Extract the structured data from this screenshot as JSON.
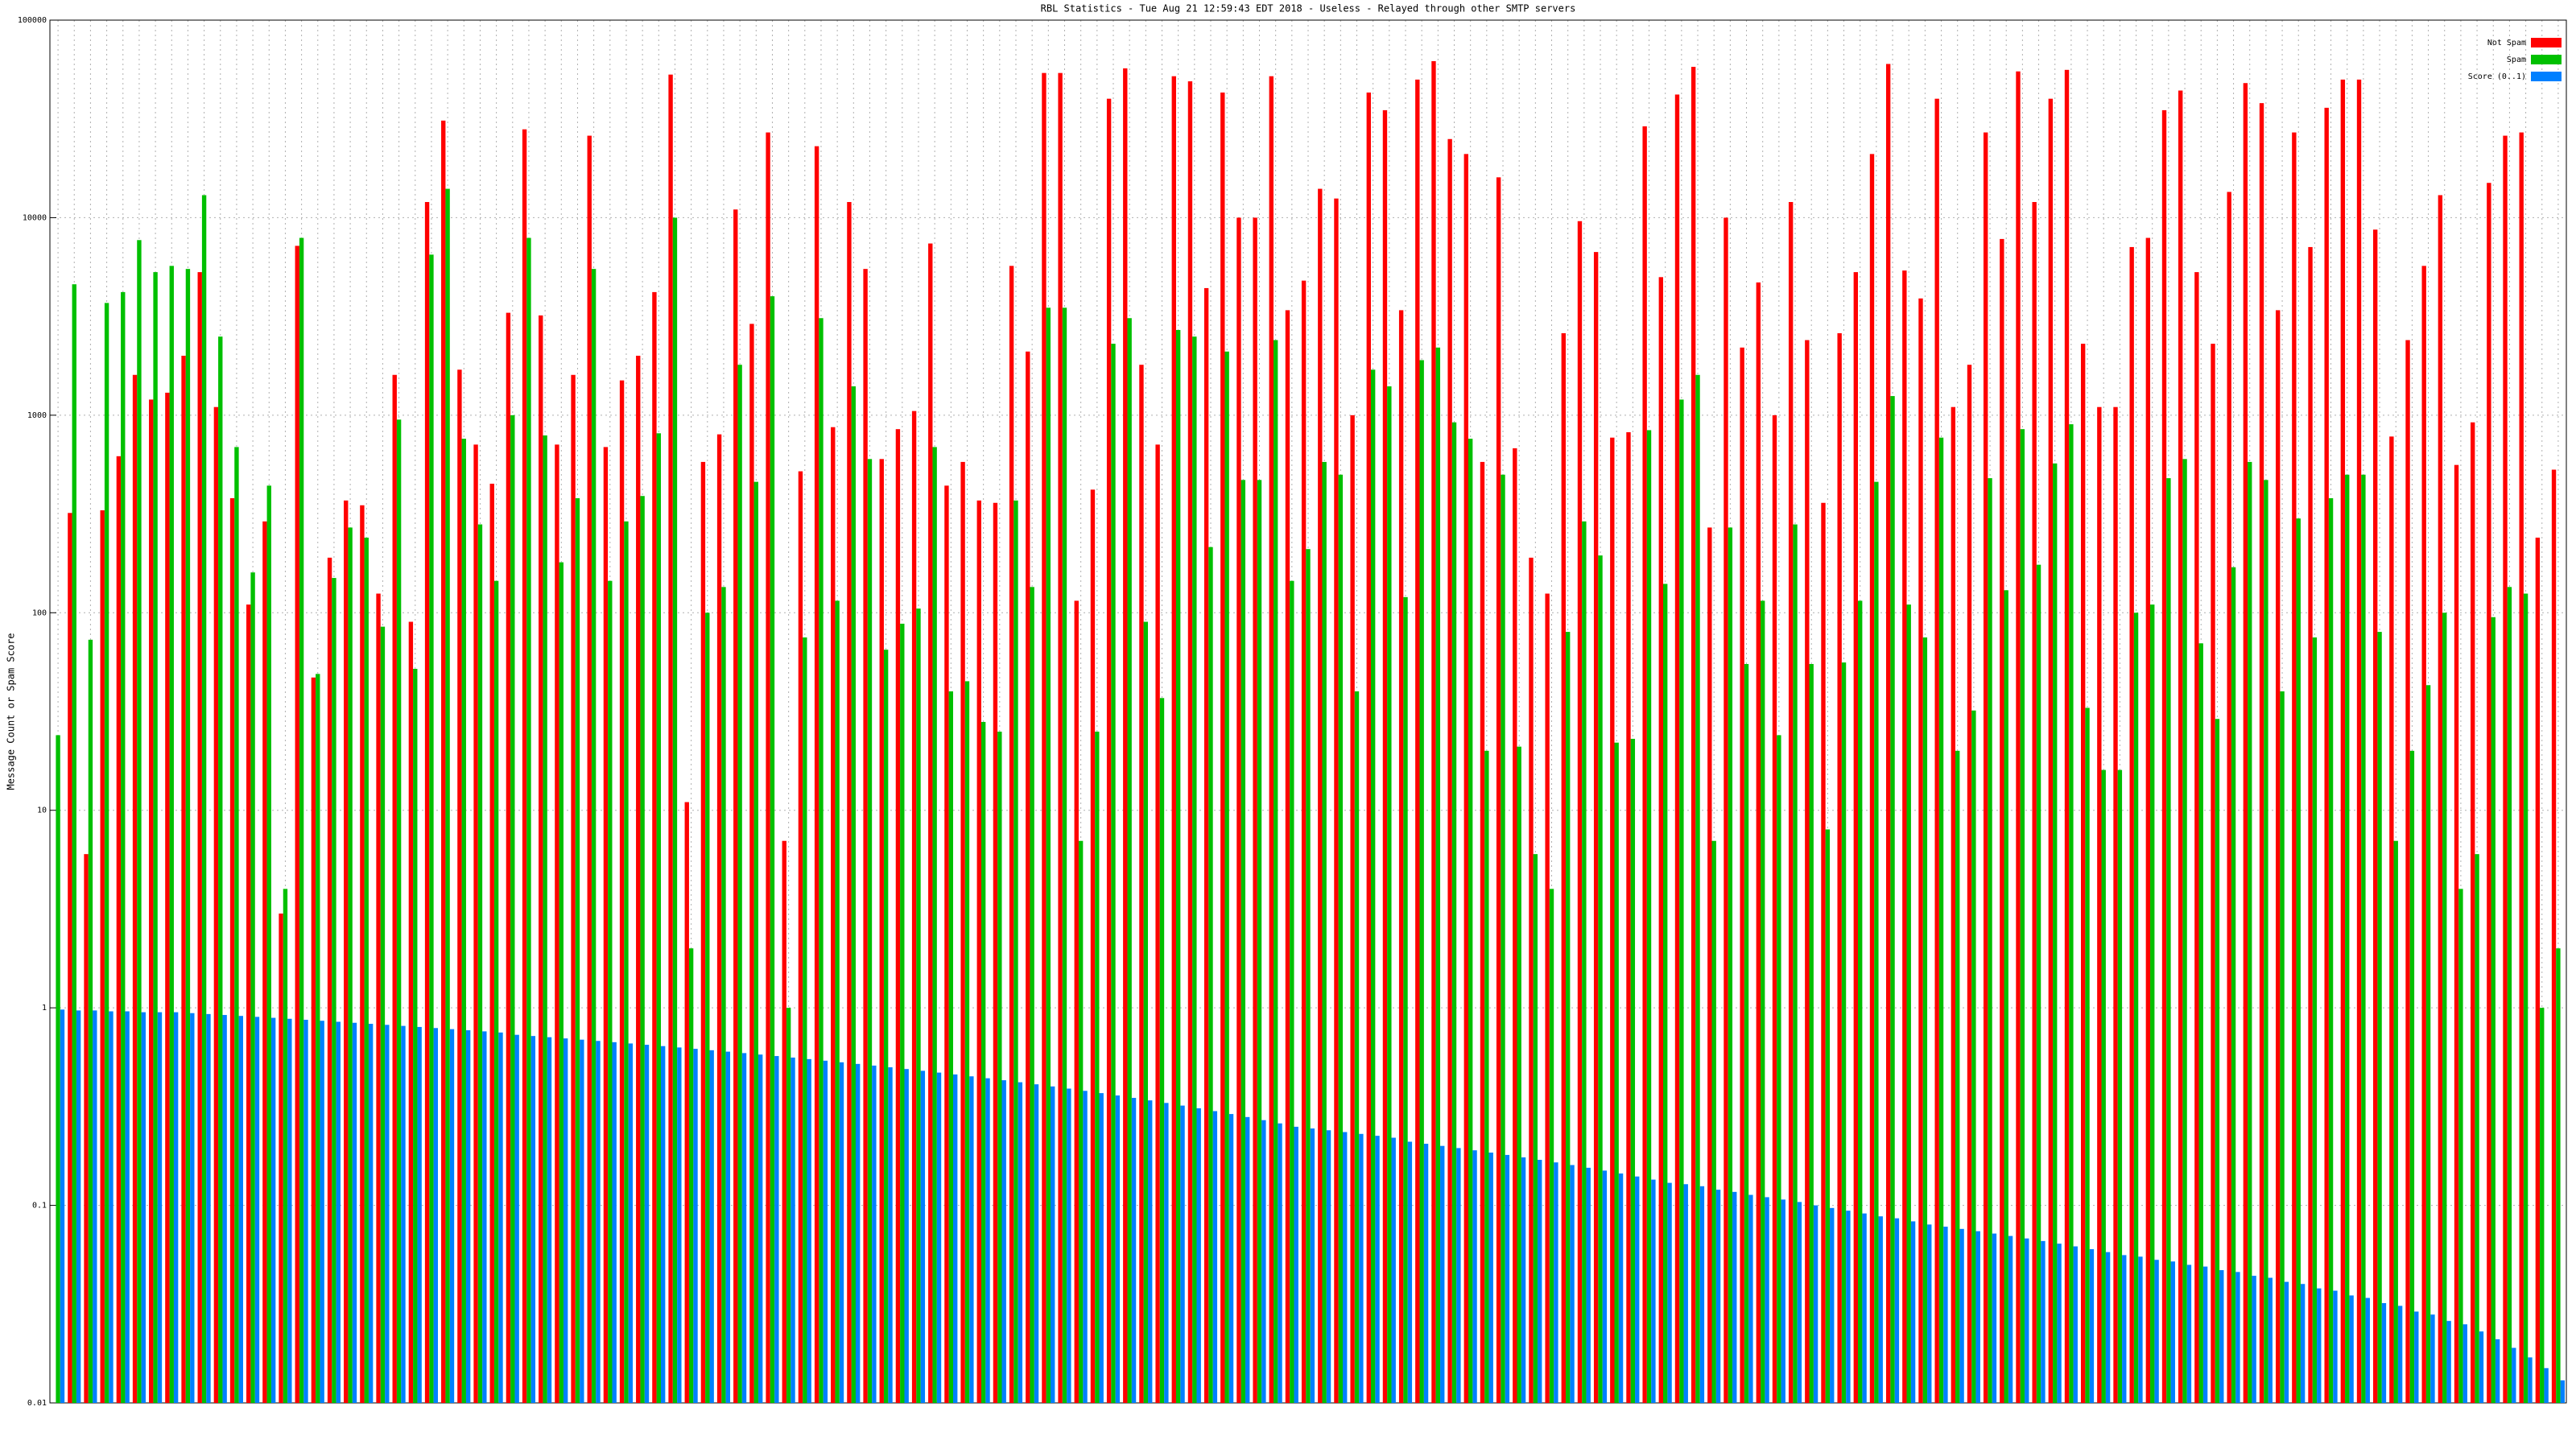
{
  "chart_data": {
    "type": "bar",
    "title": "RBL Statistics - Tue Aug 21 12:59:43 EDT 2018 - Useless - Relayed through other SMTP servers",
    "y_label": "Message Count or Spam Score",
    "log_scale": true,
    "grid": true,
    "legend": "top-right",
    "ylim": [
      0.01,
      100000
    ],
    "yticks": [
      0.01,
      0.1,
      1,
      10,
      100,
      1000,
      10000,
      100000
    ],
    "categories": [
      null,
      null,
      null,
      null,
      null,
      null,
      null,
      null,
      null,
      null,
      null,
      null,
      null,
      null,
      null,
      null,
      null,
      null,
      null,
      null,
      null,
      null,
      null,
      null,
      null,
      null,
      null,
      null,
      null,
      null,
      null,
      null,
      null,
      null,
      null,
      null,
      null,
      null,
      null,
      null,
      null,
      null,
      null,
      null,
      null,
      null,
      null,
      null,
      null,
      null,
      null,
      null,
      null,
      null,
      null,
      null,
      null,
      null,
      null,
      null,
      null,
      null,
      null,
      null,
      null,
      null,
      null,
      null,
      null,
      null,
      null,
      null,
      null,
      null,
      null,
      null,
      null,
      null,
      null,
      null,
      null,
      null,
      null,
      null,
      null,
      null,
      null,
      null,
      null,
      null,
      null,
      null,
      null,
      null,
      null,
      null,
      null,
      null,
      null,
      null,
      null,
      null,
      null,
      null,
      null,
      null,
      null,
      null,
      null,
      null,
      null,
      null,
      null,
      null,
      null,
      null,
      null,
      null,
      null,
      null,
      null,
      null,
      null,
      null,
      null,
      null,
      null,
      null,
      null,
      null,
      null,
      null,
      null,
      null,
      null,
      null,
      null,
      null,
      null,
      null,
      null,
      null,
      null,
      null,
      null,
      null,
      null,
      null,
      null,
      null,
      null,
      null,
      null,
      null,
      null
    ],
    "series": [
      {
        "name": "Not Spam",
        "color": "#ff0000",
        "values": [
          null,
          320,
          6,
          330,
          620,
          1600,
          1200,
          1300,
          2000,
          5300,
          1100,
          380,
          110,
          290,
          3,
          7200,
          47,
          190,
          370,
          350,
          125,
          1600,
          90,
          12000,
          31000,
          1700,
          710,
          450,
          3300,
          28000,
          3200,
          710,
          1600,
          26000,
          690,
          1500,
          2000,
          4200,
          53000,
          11,
          580,
          800,
          11000,
          2900,
          27000,
          7,
          520,
          23000,
          870,
          12000,
          5500,
          600,
          850,
          1050,
          7400,
          440,
          580,
          370,
          360,
          5700,
          2100,
          54000,
          54000,
          115,
          420,
          40000,
          57000,
          1800,
          710,
          52000,
          49000,
          4400,
          43000,
          10000,
          10000,
          52000,
          3400,
          4800,
          14000,
          12500,
          1000,
          43000,
          35000,
          3400,
          50000,
          62000,
          25000,
          21000,
          580,
          16000,
          680,
          190,
          125,
          2600,
          9600,
          6700,
          770,
          820,
          29000,
          5000,
          42000,
          58000,
          270,
          10000,
          2200,
          4700,
          1000,
          12000,
          2400,
          360,
          2600,
          5300,
          21000,
          60000,
          5400,
          3900,
          40000,
          1100,
          1800,
          27000,
          7800,
          55000,
          12000,
          40000,
          56000,
          2300,
          1100,
          1100,
          7100,
          7900,
          35000,
          44000,
          5300,
          2300,
          13500,
          48000,
          38000,
          3400,
          27000,
          7100,
          36000,
          50000,
          50000,
          8700,
          780,
          2400,
          5700,
          13000,
          560,
          920,
          15000,
          26000,
          27000,
          240,
          530
        ]
      },
      {
        "name": "Spam",
        "color": "#00c000",
        "values": [
          24,
          4600,
          73,
          3700,
          4200,
          7700,
          5300,
          5700,
          5500,
          13000,
          2500,
          690,
          160,
          440,
          4,
          7900,
          49,
          150,
          270,
          240,
          85,
          950,
          52,
          6500,
          14000,
          760,
          280,
          145,
          1000,
          7900,
          790,
          180,
          380,
          5500,
          145,
          290,
          390,
          810,
          10000,
          2,
          100,
          135,
          1800,
          460,
          4000,
          1,
          75,
          3100,
          115,
          1400,
          600,
          65,
          88,
          105,
          690,
          40,
          45,
          28,
          25,
          370,
          135,
          3500,
          3500,
          7,
          25,
          2300,
          3100,
          90,
          37,
          2700,
          2500,
          215,
          2100,
          470,
          470,
          2400,
          145,
          210,
          580,
          500,
          40,
          1700,
          1400,
          120,
          1900,
          2200,
          920,
          760,
          20,
          500,
          21,
          6,
          4,
          80,
          290,
          195,
          22,
          23,
          840,
          140,
          1200,
          1600,
          7,
          270,
          55,
          115,
          24,
          280,
          55,
          8,
          56,
          115,
          460,
          1250,
          110,
          75,
          770,
          20,
          32,
          480,
          130,
          850,
          175,
          570,
          900,
          33,
          16,
          16,
          100,
          110,
          480,
          600,
          70,
          29,
          170,
          580,
          470,
          40,
          300,
          75,
          380,
          500,
          500,
          80,
          7,
          20,
          43,
          100,
          4,
          6,
          95,
          135,
          125,
          1,
          2
        ]
      },
      {
        "name": "Score (0..1)",
        "color": "#0080ff",
        "values": [
          0.98,
          0.97,
          0.97,
          0.96,
          0.96,
          0.95,
          0.95,
          0.95,
          0.94,
          0.93,
          0.92,
          0.91,
          0.9,
          0.89,
          0.88,
          0.87,
          0.86,
          0.85,
          0.84,
          0.83,
          0.82,
          0.81,
          0.8,
          0.79,
          0.78,
          0.77,
          0.76,
          0.75,
          0.73,
          0.72,
          0.71,
          0.7,
          0.69,
          0.68,
          0.67,
          0.66,
          0.65,
          0.64,
          0.63,
          0.62,
          0.61,
          0.6,
          0.59,
          0.58,
          0.57,
          0.56,
          0.55,
          0.54,
          0.53,
          0.52,
          0.51,
          0.5,
          0.49,
          0.48,
          0.47,
          0.46,
          0.45,
          0.44,
          0.43,
          0.42,
          0.41,
          0.4,
          0.39,
          0.38,
          0.37,
          0.36,
          0.35,
          0.34,
          0.33,
          0.32,
          0.31,
          0.3,
          0.29,
          0.28,
          0.27,
          0.26,
          0.25,
          0.245,
          0.24,
          0.235,
          0.23,
          0.225,
          0.22,
          0.21,
          0.205,
          0.2,
          0.195,
          0.19,
          0.185,
          0.18,
          0.175,
          0.17,
          0.165,
          0.16,
          0.155,
          0.15,
          0.145,
          0.14,
          0.135,
          0.13,
          0.128,
          0.125,
          0.12,
          0.117,
          0.113,
          0.11,
          0.107,
          0.104,
          0.1,
          0.097,
          0.094,
          0.091,
          0.088,
          0.086,
          0.083,
          0.08,
          0.078,
          0.076,
          0.074,
          0.072,
          0.07,
          0.068,
          0.066,
          0.064,
          0.062,
          0.06,
          0.058,
          0.056,
          0.055,
          0.053,
          0.052,
          0.05,
          0.049,
          0.047,
          0.046,
          0.044,
          0.043,
          0.041,
          0.04,
          0.038,
          0.037,
          0.035,
          0.034,
          0.032,
          0.031,
          0.029,
          0.028,
          0.026,
          0.025,
          0.023,
          0.021,
          0.019,
          0.017,
          0.015,
          0.013
        ]
      }
    ]
  }
}
